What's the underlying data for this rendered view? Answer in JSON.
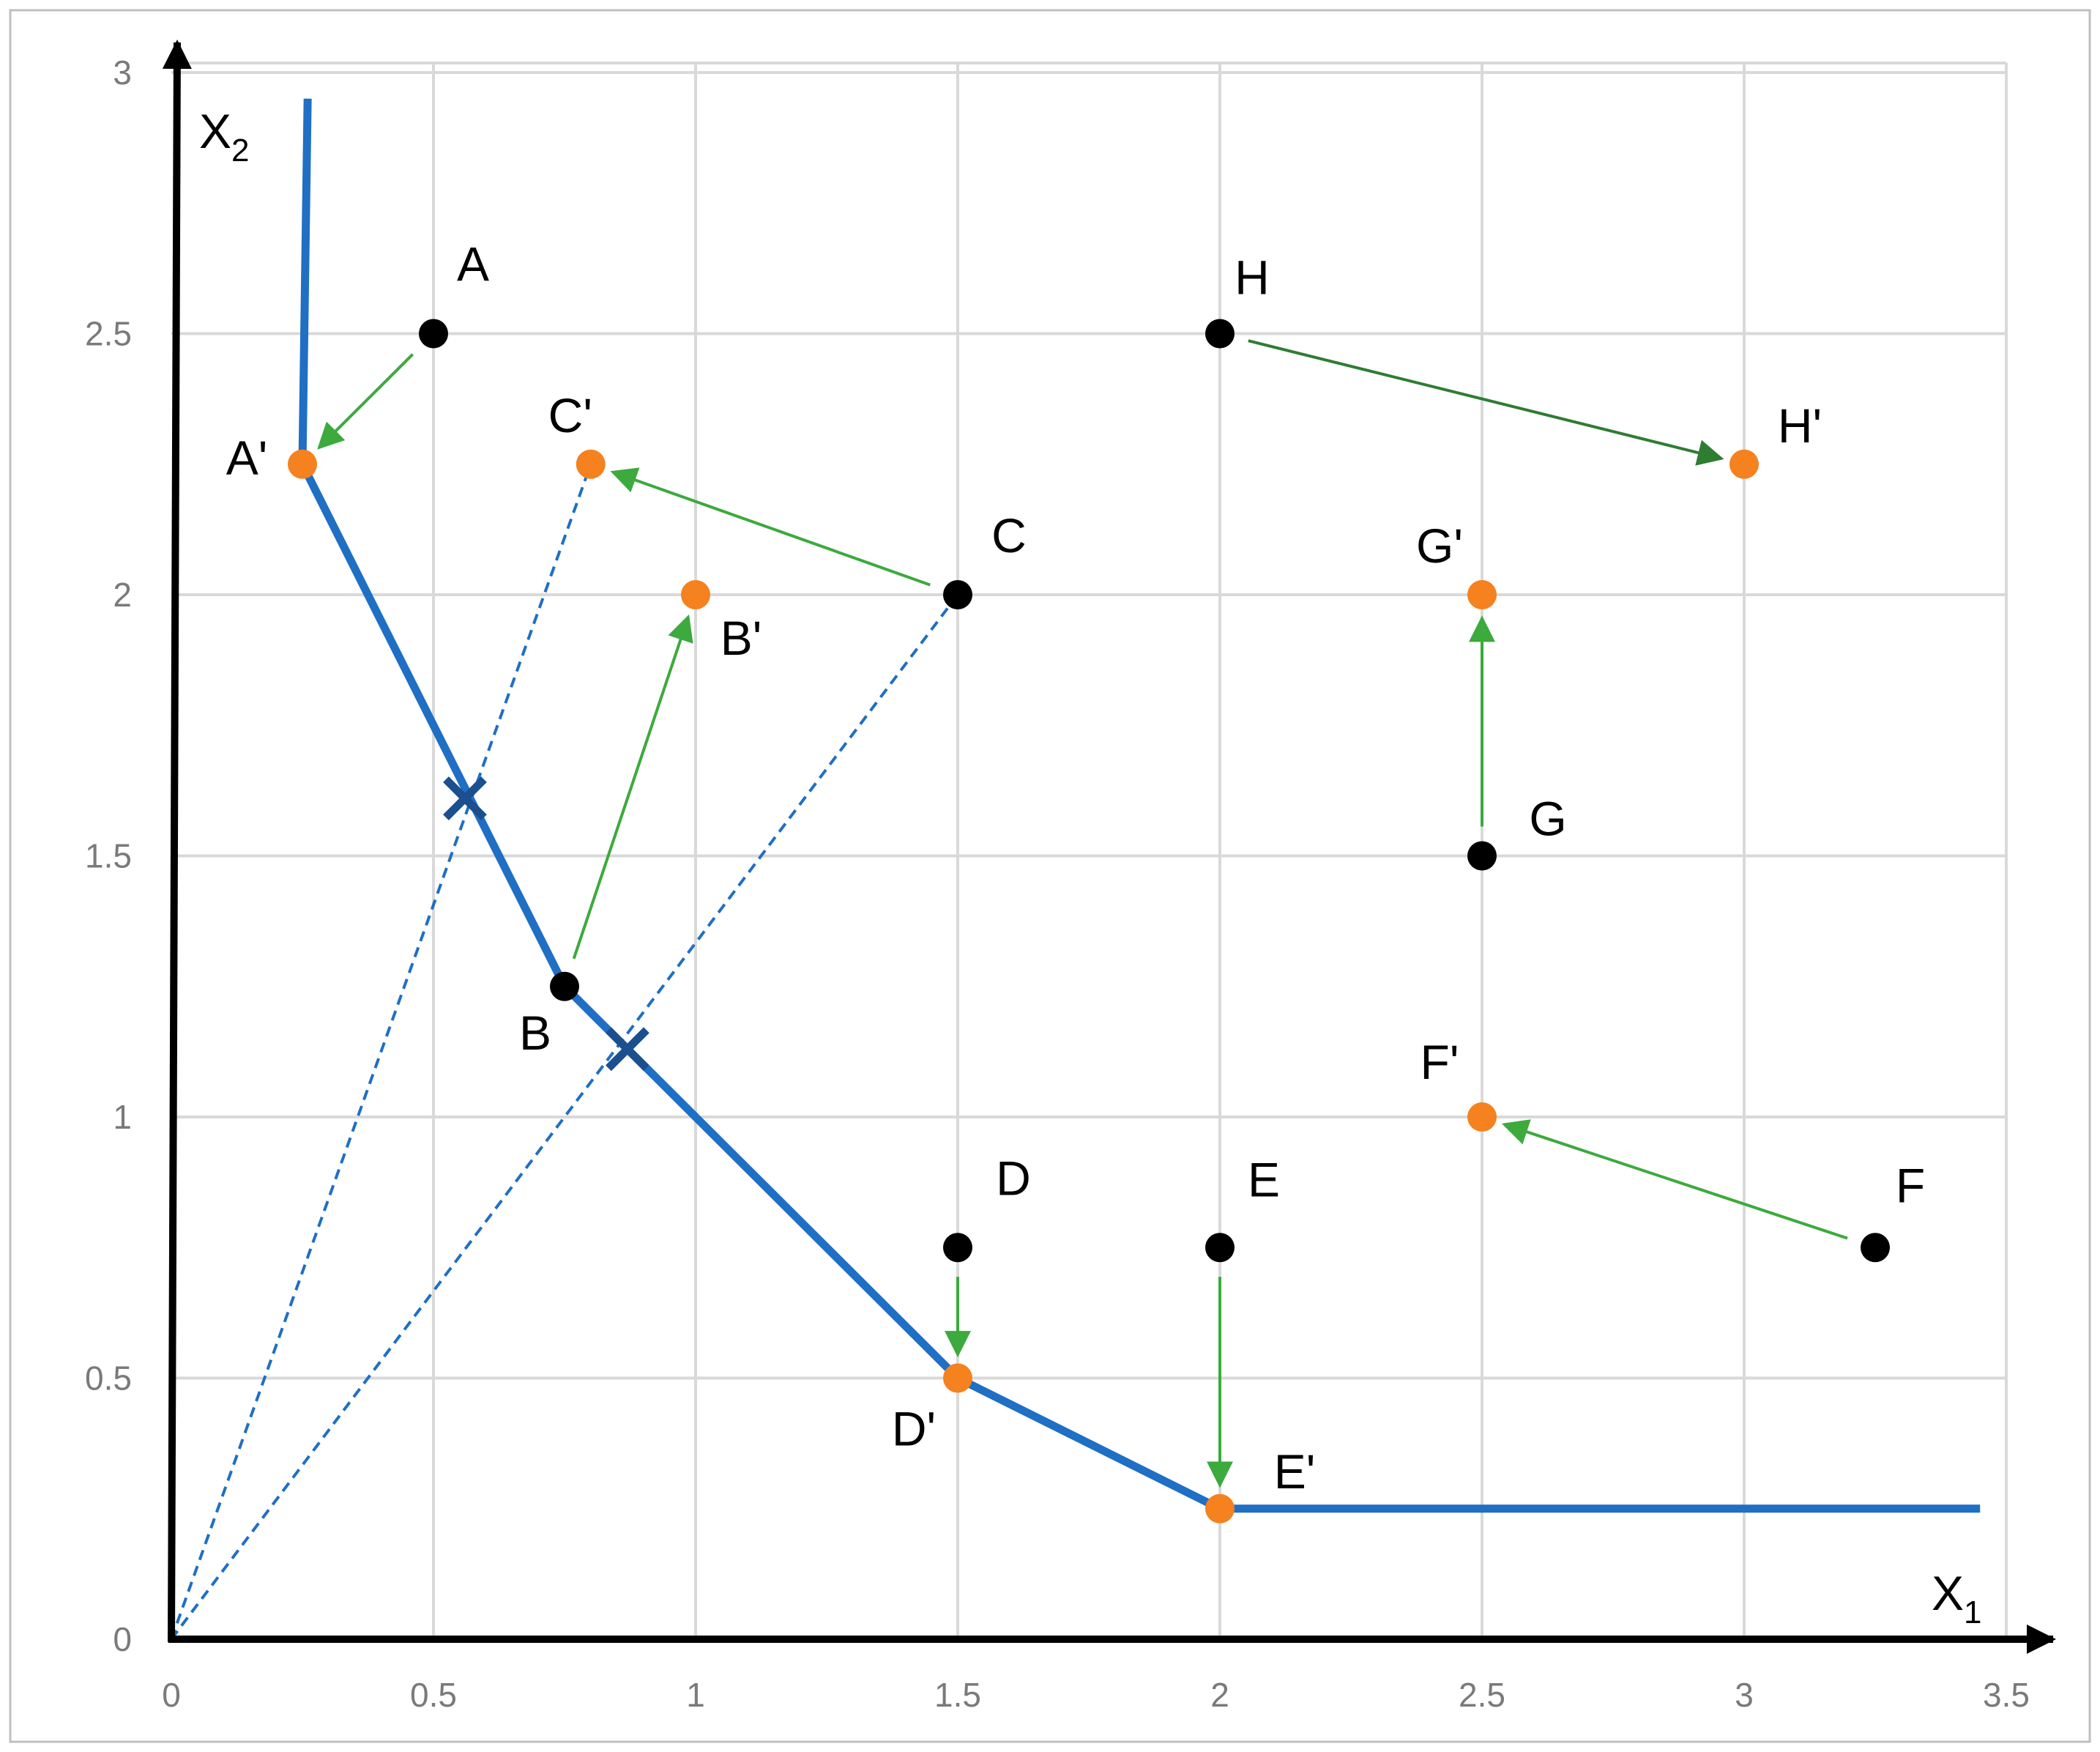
{
  "chart_data": {
    "type": "scatter",
    "xlim": [
      0,
      3.5
    ],
    "ylim": [
      0,
      3
    ],
    "x_ticks": [
      "0",
      "0.5",
      "1",
      "1.5",
      "2",
      "2.5",
      "3",
      "3.5"
    ],
    "y_ticks": [
      "0",
      "0.5",
      "1",
      "1.5",
      "2",
      "2.5",
      "3"
    ],
    "x_tick_values": [
      0,
      0.5,
      1,
      1.5,
      2,
      2.5,
      3,
      3.5
    ],
    "y_tick_values": [
      0,
      0.5,
      1,
      1.5,
      2,
      2.5,
      3
    ],
    "xlabel": {
      "main": "X",
      "sub": "1"
    },
    "ylabel": {
      "main": "X",
      "sub": "2"
    },
    "grid": true,
    "original_points": [
      {
        "label": "A",
        "x": 0.5,
        "y": 2.5
      },
      {
        "label": "B",
        "x": 0.75,
        "y": 1.25
      },
      {
        "label": "C",
        "x": 1.5,
        "y": 2.0
      },
      {
        "label": "D",
        "x": 1.5,
        "y": 0.75
      },
      {
        "label": "E",
        "x": 2.0,
        "y": 0.75
      },
      {
        "label": "F",
        "x": 3.25,
        "y": 0.75
      },
      {
        "label": "G",
        "x": 2.5,
        "y": 1.5
      },
      {
        "label": "H",
        "x": 2.0,
        "y": 2.5
      }
    ],
    "projected_points": [
      {
        "label": "A'",
        "x": 0.25,
        "y": 2.25
      },
      {
        "label": "B'",
        "x": 1.0,
        "y": 2.0
      },
      {
        "label": "C'",
        "x": 0.8,
        "y": 2.25
      },
      {
        "label": "D'",
        "x": 1.5,
        "y": 0.5
      },
      {
        "label": "E'",
        "x": 2.0,
        "y": 0.25
      },
      {
        "label": "F'",
        "x": 2.5,
        "y": 1.0
      },
      {
        "label": "G'",
        "x": 2.5,
        "y": 2.0
      },
      {
        "label": "H'",
        "x": 3.0,
        "y": 2.25
      }
    ],
    "frontier": [
      {
        "x": 0.26,
        "y": 2.95
      },
      {
        "x": 0.25,
        "y": 2.25
      },
      {
        "x": 0.75,
        "y": 1.25
      },
      {
        "x": 1.5,
        "y": 0.5
      },
      {
        "x": 2.0,
        "y": 0.25
      },
      {
        "x": 3.45,
        "y": 0.25
      }
    ],
    "rays": [
      {
        "from": {
          "x": 0,
          "y": 0
        },
        "to": {
          "x": 0.8,
          "y": 2.25
        }
      },
      {
        "from": {
          "x": 0,
          "y": 0
        },
        "to": {
          "x": 1.5,
          "y": 2.0
        }
      }
    ],
    "crossings": [
      {
        "x": 0.56,
        "y": 1.61
      },
      {
        "x": 0.87,
        "y": 1.13
      }
    ],
    "moves": [
      {
        "from": "A",
        "to": "A'"
      },
      {
        "from": "B",
        "to": "B'"
      },
      {
        "from": "C",
        "to": "C'"
      },
      {
        "from": "D",
        "to": "D'"
      },
      {
        "from": "E",
        "to": "E'"
      },
      {
        "from": "F",
        "to": "F'"
      },
      {
        "from": "G",
        "to": "G'"
      },
      {
        "from": "H",
        "to": "H'"
      }
    ],
    "colors": {
      "frontier": "#1f6fc4",
      "ray": "#1f6fc4",
      "crossing": "#1b4f8f",
      "arrow": "#3caa3c",
      "arrow_dark": "#2e7d32",
      "original_point": "#000000",
      "projected_point": "#f5811f",
      "grid": "#d9d9d9",
      "axis": "#000000"
    }
  }
}
